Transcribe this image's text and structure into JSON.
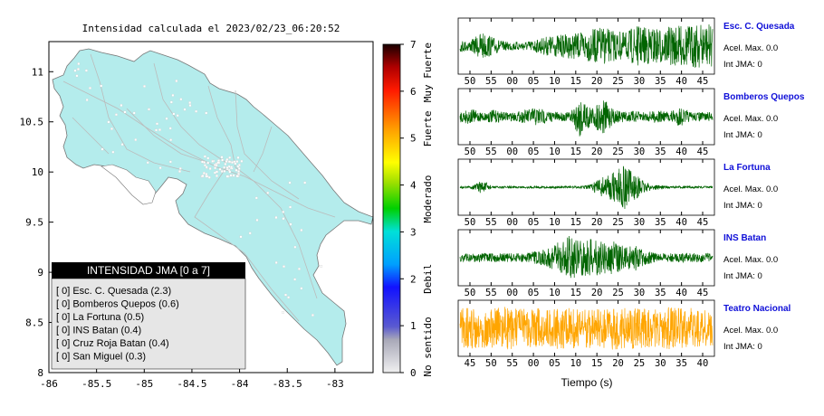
{
  "map": {
    "title": "Intensidad calculada el 2023/02/23_06:20:52",
    "x_ticks": [
      "-86",
      "-85.5",
      "-85",
      "-84.5",
      "-84",
      "-83.5",
      "-83"
    ],
    "y_ticks": [
      "11",
      "10.5",
      "10",
      "9.5",
      "9",
      "8.5",
      "8"
    ],
    "xlim": [
      -86,
      -82.6
    ],
    "ylim": [
      8,
      11.3
    ],
    "land_color": "#b4ecec",
    "station_count_shown": "many"
  },
  "legend": {
    "title": "INTENSIDAD JMA [0 a 7]",
    "items": [
      "[ 0]  Esc. C. Quesada (2.3)",
      "[ 0]  Bomberos Quepos (0.6)",
      "[ 0]  La Fortuna (0.5)",
      "[ 0]  INS Batan (0.4)",
      "[ 0]  Cruz Roja Batan (0.4)",
      "[ 0]  San Miguel (0.3)"
    ]
  },
  "colorbar": {
    "ticks": [
      "0",
      "1",
      "2",
      "3",
      "4",
      "5",
      "6",
      "7"
    ],
    "labels": [
      "No sentido",
      "Debil",
      "Moderado",
      "Fuerte",
      "Muy Fuerte"
    ],
    "range": [
      0,
      7
    ]
  },
  "traces": {
    "x_label": "Tiempo (s)",
    "panels": [
      {
        "station": "Esc. C. Quesada",
        "acel": "Acel. Max. 0.0",
        "int": "Int JMA: 0",
        "color": "#006400",
        "ticks": [
          "50",
          "55",
          "00",
          "05",
          "10",
          "15",
          "20",
          "25",
          "30",
          "35",
          "40",
          "45"
        ]
      },
      {
        "station": "Bomberos Quepos",
        "acel": "Acel. Max. 0.0",
        "int": "Int JMA: 0",
        "color": "#006400",
        "ticks": [
          "50",
          "55",
          "00",
          "05",
          "10",
          "15",
          "20",
          "25",
          "30",
          "35",
          "40",
          "45"
        ]
      },
      {
        "station": "La Fortuna",
        "acel": "Acel. Max. 0.0",
        "int": "Int JMA: 0",
        "color": "#006400",
        "ticks": [
          "50",
          "55",
          "00",
          "05",
          "10",
          "15",
          "20",
          "25",
          "30",
          "35",
          "40",
          "45"
        ]
      },
      {
        "station": "INS Batan",
        "acel": "Acel. Max. 0.0",
        "int": "Int JMA: 0",
        "color": "#006400",
        "ticks": [
          "50",
          "55",
          "00",
          "05",
          "10",
          "15",
          "20",
          "25",
          "30",
          "35",
          "40",
          "45"
        ]
      },
      {
        "station": "Teatro Nacional",
        "acel": "Acel. Max. 0.0",
        "int": "Int JMA: 0",
        "color": "#ffa500",
        "ticks": [
          "45",
          "50",
          "55",
          "00",
          "05",
          "10",
          "15",
          "20",
          "25",
          "30",
          "35",
          "40"
        ]
      }
    ]
  },
  "chart_data": [
    {
      "type": "map",
      "title": "Intensidad calculada el 2023/02/23_06:20:52",
      "xlabel": "",
      "ylabel": "",
      "xlim": [
        -86,
        -82.6
      ],
      "ylim": [
        8,
        11.3
      ],
      "legend": {
        "title": "INTENSIDAD JMA [0 a 7]",
        "placement": "bottom-left"
      },
      "stations": [
        {
          "name": "Esc. C. Quesada",
          "intensity_class": 0,
          "intensity": 2.3
        },
        {
          "name": "Bomberos Quepos",
          "intensity_class": 0,
          "intensity": 0.6
        },
        {
          "name": "La Fortuna",
          "intensity_class": 0,
          "intensity": 0.5
        },
        {
          "name": "INS Batan",
          "intensity_class": 0,
          "intensity": 0.4
        },
        {
          "name": "Cruz Roja Batan",
          "intensity_class": 0,
          "intensity": 0.4
        },
        {
          "name": "San Miguel",
          "intensity_class": 0,
          "intensity": 0.3
        }
      ]
    },
    {
      "type": "heatmap",
      "title": "",
      "range": [
        0,
        7
      ],
      "ticks": [
        0,
        1,
        2,
        3,
        4,
        5,
        6,
        7
      ],
      "labels": [
        "No sentido",
        "Debil",
        "Moderado",
        "Fuerte",
        "Muy Fuerte"
      ]
    },
    {
      "type": "line",
      "xlabel": "Tiempo (s)",
      "series": [
        {
          "name": "Esc. C. Quesada",
          "peak_accel": 0.0,
          "int_jma": 0,
          "envelope": [
            0.25,
            0.25,
            0.65,
            0.4,
            0.2,
            0.2,
            0.2,
            0.3,
            0.45,
            0.5,
            0.55,
            0.6,
            0.75,
            0.85,
            0.7,
            0.6,
            0.9,
            0.85,
            0.8,
            0.85,
            0.9,
            0.95,
            1.0,
            0.95
          ]
        },
        {
          "name": "Bomberos Quepos",
          "peak_accel": 0.0,
          "int_jma": 0,
          "envelope": [
            0.25,
            0.35,
            0.2,
            0.3,
            0.2,
            0.2,
            0.3,
            0.45,
            0.25,
            0.2,
            0.2,
            1.0,
            0.4,
            0.85,
            0.3,
            0.25,
            0.25,
            0.2,
            0.3,
            0.2,
            0.45,
            0.2,
            0.2,
            0.2
          ]
        },
        {
          "name": "La Fortuna",
          "peak_accel": 0.0,
          "int_jma": 0,
          "envelope": [
            0.05,
            0.05,
            0.3,
            0.05,
            0.05,
            0.05,
            0.05,
            0.05,
            0.05,
            0.05,
            0.05,
            0.05,
            0.15,
            0.5,
            0.65,
            1.0,
            0.55,
            0.2,
            0.1,
            0.05,
            0.05,
            0.05,
            0.05,
            0.05
          ]
        },
        {
          "name": "INS Batan",
          "peak_accel": 0.0,
          "int_jma": 0,
          "envelope": [
            0.2,
            0.2,
            0.2,
            0.2,
            0.2,
            0.2,
            0.2,
            0.3,
            0.4,
            0.7,
            1.0,
            0.8,
            0.85,
            0.7,
            0.75,
            0.5,
            0.6,
            0.3,
            0.2,
            0.2,
            0.2,
            0.2,
            0.2,
            0.2
          ]
        },
        {
          "name": "Teatro Nacional",
          "peak_accel": 0.0,
          "int_jma": 0,
          "envelope": [
            0.9,
            0.9,
            0.85,
            0.9,
            0.95,
            0.9,
            0.85,
            0.9,
            0.9,
            0.95,
            0.9,
            0.85,
            0.9,
            0.9,
            0.95,
            0.9,
            0.9,
            0.85,
            0.9,
            0.95,
            0.9,
            0.9,
            0.85,
            0.9
          ]
        }
      ]
    }
  ]
}
